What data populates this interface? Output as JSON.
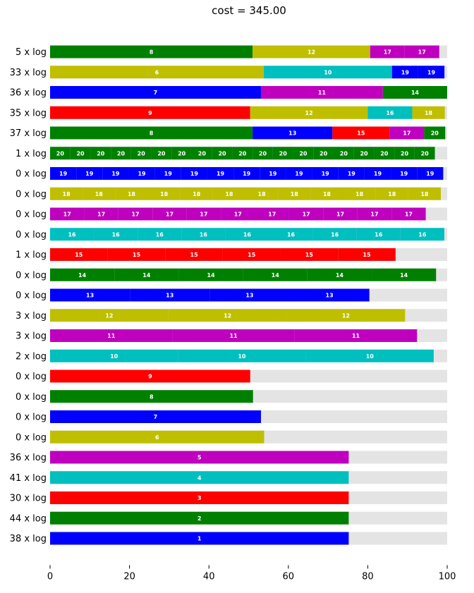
{
  "chart_data": {
    "type": "bar",
    "orientation": "horizontal-stacked",
    "title": "cost = 345.00",
    "xlim": [
      0,
      100
    ],
    "x_ticks": [
      0,
      20,
      40,
      60,
      80,
      100
    ],
    "grid": false,
    "colors": {
      "g": "#008000",
      "y": "#bfbf00",
      "m": "#bf00bf",
      "b": "#0000ff",
      "c": "#00bfbf",
      "r": "#ff0000",
      "bg": "#e4e4e4"
    },
    "rows": [
      {
        "label": "5 x log",
        "segments": [
          {
            "label": "8",
            "value": 51,
            "color": "g"
          },
          {
            "label": "12",
            "value": 29.6,
            "color": "y"
          },
          {
            "label": "17",
            "value": 8.7,
            "color": "m"
          },
          {
            "label": "17",
            "value": 8.7,
            "color": "m"
          }
        ]
      },
      {
        "label": "33 x log",
        "segments": [
          {
            "label": "6",
            "value": 53.8,
            "color": "y"
          },
          {
            "label": "10",
            "value": 32.3,
            "color": "c"
          },
          {
            "label": "19",
            "value": 6.6,
            "color": "b"
          },
          {
            "label": "19",
            "value": 6.6,
            "color": "b"
          }
        ]
      },
      {
        "label": "36 x log",
        "segments": [
          {
            "label": "7",
            "value": 53.1,
            "color": "b"
          },
          {
            "label": "11",
            "value": 30.7,
            "color": "m"
          },
          {
            "label": "14",
            "value": 16.2,
            "color": "g"
          }
        ]
      },
      {
        "label": "35 x log",
        "segments": [
          {
            "label": "9",
            "value": 50.4,
            "color": "r"
          },
          {
            "label": "12",
            "value": 29.6,
            "color": "y"
          },
          {
            "label": "16",
            "value": 11.2,
            "color": "c"
          },
          {
            "label": "18",
            "value": 8.2,
            "color": "y"
          }
        ]
      },
      {
        "label": "37 x log",
        "segments": [
          {
            "label": "8",
            "value": 51,
            "color": "g"
          },
          {
            "label": "13",
            "value": 20.1,
            "color": "b"
          },
          {
            "label": "15",
            "value": 14.4,
            "color": "r"
          },
          {
            "label": "17",
            "value": 8.7,
            "color": "m"
          },
          {
            "label": "20",
            "value": 5.3,
            "color": "g"
          }
        ]
      },
      {
        "label": "1 x log",
        "segments": [
          {
            "label": "20",
            "value": 5.1,
            "color": "g"
          },
          {
            "label": "20",
            "value": 5.1,
            "color": "g"
          },
          {
            "label": "20",
            "value": 5.1,
            "color": "g"
          },
          {
            "label": "20",
            "value": 5.1,
            "color": "g"
          },
          {
            "label": "20",
            "value": 5.1,
            "color": "g"
          },
          {
            "label": "20",
            "value": 5.1,
            "color": "g"
          },
          {
            "label": "20",
            "value": 5.1,
            "color": "g"
          },
          {
            "label": "20",
            "value": 5.1,
            "color": "g"
          },
          {
            "label": "20",
            "value": 5.1,
            "color": "g"
          },
          {
            "label": "20",
            "value": 5.1,
            "color": "g"
          },
          {
            "label": "20",
            "value": 5.1,
            "color": "g"
          },
          {
            "label": "20",
            "value": 5.1,
            "color": "g"
          },
          {
            "label": "20",
            "value": 5.1,
            "color": "g"
          },
          {
            "label": "20",
            "value": 5.1,
            "color": "g"
          },
          {
            "label": "20",
            "value": 5.1,
            "color": "g"
          },
          {
            "label": "20",
            "value": 5.1,
            "color": "g"
          },
          {
            "label": "20",
            "value": 5.1,
            "color": "g"
          },
          {
            "label": "20",
            "value": 5.1,
            "color": "g"
          },
          {
            "label": "20",
            "value": 5.1,
            "color": "g"
          }
        ]
      },
      {
        "label": "0 x log",
        "segments": [
          {
            "label": "19",
            "value": 6.6,
            "color": "b"
          },
          {
            "label": "19",
            "value": 6.6,
            "color": "b"
          },
          {
            "label": "19",
            "value": 6.6,
            "color": "b"
          },
          {
            "label": "19",
            "value": 6.6,
            "color": "b"
          },
          {
            "label": "19",
            "value": 6.6,
            "color": "b"
          },
          {
            "label": "19",
            "value": 6.6,
            "color": "b"
          },
          {
            "label": "19",
            "value": 6.6,
            "color": "b"
          },
          {
            "label": "19",
            "value": 6.6,
            "color": "b"
          },
          {
            "label": "19",
            "value": 6.6,
            "color": "b"
          },
          {
            "label": "19",
            "value": 6.6,
            "color": "b"
          },
          {
            "label": "19",
            "value": 6.6,
            "color": "b"
          },
          {
            "label": "19",
            "value": 6.6,
            "color": "b"
          },
          {
            "label": "19",
            "value": 6.6,
            "color": "b"
          },
          {
            "label": "19",
            "value": 6.6,
            "color": "b"
          },
          {
            "label": "19",
            "value": 6.6,
            "color": "b"
          }
        ]
      },
      {
        "label": "0 x log",
        "segments": [
          {
            "label": "18",
            "value": 8.2,
            "color": "y"
          },
          {
            "label": "18",
            "value": 8.2,
            "color": "y"
          },
          {
            "label": "18",
            "value": 8.2,
            "color": "y"
          },
          {
            "label": "18",
            "value": 8.2,
            "color": "y"
          },
          {
            "label": "18",
            "value": 8.2,
            "color": "y"
          },
          {
            "label": "18",
            "value": 8.2,
            "color": "y"
          },
          {
            "label": "18",
            "value": 8.2,
            "color": "y"
          },
          {
            "label": "18",
            "value": 8.2,
            "color": "y"
          },
          {
            "label": "18",
            "value": 8.2,
            "color": "y"
          },
          {
            "label": "18",
            "value": 8.2,
            "color": "y"
          },
          {
            "label": "18",
            "value": 8.2,
            "color": "y"
          },
          {
            "label": "18",
            "value": 8.2,
            "color": "y"
          }
        ]
      },
      {
        "label": "0 x log",
        "segments": [
          {
            "label": "17",
            "value": 8.6,
            "color": "m"
          },
          {
            "label": "17",
            "value": 8.6,
            "color": "m"
          },
          {
            "label": "17",
            "value": 8.6,
            "color": "m"
          },
          {
            "label": "17",
            "value": 8.6,
            "color": "m"
          },
          {
            "label": "17",
            "value": 8.6,
            "color": "m"
          },
          {
            "label": "17",
            "value": 8.6,
            "color": "m"
          },
          {
            "label": "17",
            "value": 8.6,
            "color": "m"
          },
          {
            "label": "17",
            "value": 8.6,
            "color": "m"
          },
          {
            "label": "17",
            "value": 8.6,
            "color": "m"
          },
          {
            "label": "17",
            "value": 8.6,
            "color": "m"
          },
          {
            "label": "17",
            "value": 8.6,
            "color": "m"
          }
        ]
      },
      {
        "label": "0 x log",
        "segments": [
          {
            "label": "16",
            "value": 11.03,
            "color": "c"
          },
          {
            "label": "16",
            "value": 11.03,
            "color": "c"
          },
          {
            "label": "16",
            "value": 11.03,
            "color": "c"
          },
          {
            "label": "16",
            "value": 11.03,
            "color": "c"
          },
          {
            "label": "16",
            "value": 11.03,
            "color": "c"
          },
          {
            "label": "16",
            "value": 11.03,
            "color": "c"
          },
          {
            "label": "16",
            "value": 11.03,
            "color": "c"
          },
          {
            "label": "16",
            "value": 11.03,
            "color": "c"
          },
          {
            "label": "16",
            "value": 11.03,
            "color": "c"
          }
        ]
      },
      {
        "label": "1 x log",
        "segments": [
          {
            "label": "15",
            "value": 14.5,
            "color": "r"
          },
          {
            "label": "15",
            "value": 14.5,
            "color": "r"
          },
          {
            "label": "15",
            "value": 14.5,
            "color": "r"
          },
          {
            "label": "15",
            "value": 14.5,
            "color": "r"
          },
          {
            "label": "15",
            "value": 14.5,
            "color": "r"
          },
          {
            "label": "15",
            "value": 14.5,
            "color": "r"
          }
        ]
      },
      {
        "label": "0 x log",
        "segments": [
          {
            "label": "14",
            "value": 16.2,
            "color": "g"
          },
          {
            "label": "14",
            "value": 16.2,
            "color": "g"
          },
          {
            "label": "14",
            "value": 16.2,
            "color": "g"
          },
          {
            "label": "14",
            "value": 16.2,
            "color": "g"
          },
          {
            "label": "14",
            "value": 16.2,
            "color": "g"
          },
          {
            "label": "14",
            "value": 16.2,
            "color": "g"
          }
        ]
      },
      {
        "label": "0 x log",
        "segments": [
          {
            "label": "13",
            "value": 20.1,
            "color": "b"
          },
          {
            "label": "13",
            "value": 20.1,
            "color": "b"
          },
          {
            "label": "13",
            "value": 20.1,
            "color": "b"
          },
          {
            "label": "13",
            "value": 20.1,
            "color": "b"
          }
        ]
      },
      {
        "label": "3 x log",
        "segments": [
          {
            "label": "12",
            "value": 29.8,
            "color": "y"
          },
          {
            "label": "12",
            "value": 29.8,
            "color": "y"
          },
          {
            "label": "12",
            "value": 29.8,
            "color": "y"
          }
        ]
      },
      {
        "label": "3 x log",
        "segments": [
          {
            "label": "11",
            "value": 30.8,
            "color": "m"
          },
          {
            "label": "11",
            "value": 30.8,
            "color": "m"
          },
          {
            "label": "11",
            "value": 30.8,
            "color": "m"
          }
        ]
      },
      {
        "label": "2 x log",
        "segments": [
          {
            "label": "10",
            "value": 32.2,
            "color": "c"
          },
          {
            "label": "10",
            "value": 32.2,
            "color": "c"
          },
          {
            "label": "10",
            "value": 32.2,
            "color": "c"
          }
        ]
      },
      {
        "label": "0 x log",
        "segments": [
          {
            "label": "9",
            "value": 50.4,
            "color": "r"
          }
        ]
      },
      {
        "label": "0 x log",
        "segments": [
          {
            "label": "8",
            "value": 51.1,
            "color": "g"
          }
        ]
      },
      {
        "label": "0 x log",
        "segments": [
          {
            "label": "7",
            "value": 53.1,
            "color": "b"
          }
        ]
      },
      {
        "label": "0 x log",
        "segments": [
          {
            "label": "6",
            "value": 53.9,
            "color": "y"
          }
        ]
      },
      {
        "label": "36 x log",
        "segments": [
          {
            "label": "5",
            "value": 75.2,
            "color": "m"
          }
        ]
      },
      {
        "label": "41 x log",
        "segments": [
          {
            "label": "4",
            "value": 75.2,
            "color": "c"
          }
        ]
      },
      {
        "label": "30 x log",
        "segments": [
          {
            "label": "3",
            "value": 75.2,
            "color": "r"
          }
        ]
      },
      {
        "label": "44 x log",
        "segments": [
          {
            "label": "2",
            "value": 75.2,
            "color": "g"
          }
        ]
      },
      {
        "label": "38 x log",
        "segments": [
          {
            "label": "1",
            "value": 75.2,
            "color": "b"
          }
        ]
      }
    ]
  }
}
